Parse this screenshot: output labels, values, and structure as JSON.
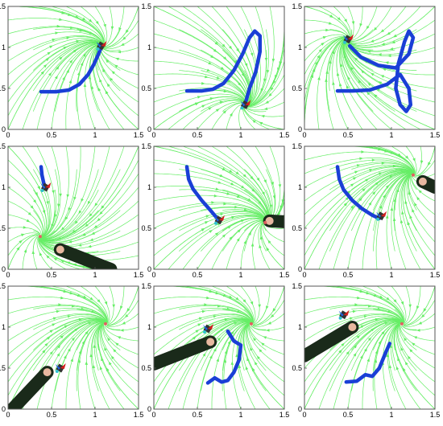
{
  "figure": {
    "background": "#ffffff",
    "stream_color": "#66ee66",
    "path_color": "#1a3fd6",
    "attractor_color": "#e06060",
    "arm_color": "#1a2a1a",
    "skin_color": "#e8b8a0"
  },
  "chart_data": [
    {
      "type": "scatter",
      "panel": "row1-col1",
      "xlim": [
        0,
        1.5
      ],
      "ylim": [
        0,
        1.5
      ],
      "x_ticks": [
        "0",
        "0.5",
        "1",
        "1.5"
      ],
      "y_ticks": [
        "0",
        "0.5",
        "1",
        "1.5"
      ],
      "grid": false,
      "attractors": [
        [
          1.08,
          1.02
        ]
      ],
      "path": [
        [
          0.38,
          0.46
        ],
        [
          0.55,
          0.46
        ],
        [
          0.7,
          0.48
        ],
        [
          0.82,
          0.55
        ],
        [
          0.92,
          0.67
        ],
        [
          0.99,
          0.8
        ],
        [
          1.04,
          0.92
        ],
        [
          1.07,
          1.0
        ]
      ],
      "robot": {
        "x": 1.07,
        "y": 1.02
      },
      "arm": null
    },
    {
      "type": "scatter",
      "panel": "row1-col2",
      "xlim": [
        0,
        1.5
      ],
      "ylim": [
        0,
        1.5
      ],
      "x_ticks": [
        "0",
        "0.5",
        "1",
        "1.5"
      ],
      "y_ticks": [
        "0",
        "0.5",
        "1",
        "1.5"
      ],
      "grid": false,
      "attractors": [
        [
          1.05,
          0.3
        ]
      ],
      "path": [
        [
          0.38,
          0.47
        ],
        [
          0.55,
          0.47
        ],
        [
          0.68,
          0.49
        ],
        [
          0.8,
          0.56
        ],
        [
          0.92,
          0.72
        ],
        [
          1.02,
          0.92
        ],
        [
          1.1,
          1.12
        ],
        [
          1.16,
          1.2
        ],
        [
          1.22,
          1.14
        ],
        [
          1.22,
          0.95
        ],
        [
          1.17,
          0.7
        ],
        [
          1.1,
          0.5
        ],
        [
          1.06,
          0.35
        ]
      ],
      "robot": {
        "x": 1.05,
        "y": 0.3
      },
      "arm": null
    },
    {
      "type": "scatter",
      "panel": "row1-col3",
      "xlim": [
        0,
        1.5
      ],
      "ylim": [
        0,
        1.5
      ],
      "x_ticks": [
        "0",
        "0.5",
        "1",
        "1.5"
      ],
      "y_ticks": [
        "0",
        "0.5",
        "1",
        "1.5"
      ],
      "grid": false,
      "attractors": [
        [
          0.5,
          1.1
        ]
      ],
      "path": [
        [
          0.38,
          0.47
        ],
        [
          0.55,
          0.47
        ],
        [
          0.75,
          0.48
        ],
        [
          0.95,
          0.55
        ],
        [
          1.1,
          0.67
        ],
        [
          1.2,
          0.5
        ],
        [
          1.22,
          0.3
        ],
        [
          1.17,
          0.22
        ],
        [
          1.1,
          0.3
        ],
        [
          1.05,
          0.5
        ],
        [
          1.08,
          0.8
        ],
        [
          1.15,
          1.07
        ],
        [
          1.2,
          1.2
        ],
        [
          1.25,
          1.12
        ],
        [
          1.2,
          0.92
        ],
        [
          1.05,
          0.75
        ],
        [
          0.85,
          0.78
        ],
        [
          0.65,
          0.88
        ],
        [
          0.52,
          1.02
        ]
      ],
      "robot": {
        "x": 0.5,
        "y": 1.1
      },
      "arm": null
    },
    {
      "type": "scatter",
      "panel": "row2-col1",
      "xlim": [
        0,
        1.5
      ],
      "ylim": [
        0,
        1.5
      ],
      "x_ticks": [
        "0",
        "0.5",
        "1",
        "1.5"
      ],
      "y_ticks": [
        "0",
        "0.5",
        "1",
        "1.5"
      ],
      "grid": false,
      "attractors": [
        [
          0.37,
          0.4
        ]
      ],
      "path": [
        [
          0.38,
          1.25
        ],
        [
          0.39,
          1.15
        ],
        [
          0.41,
          1.05
        ],
        [
          0.43,
          1.0
        ]
      ],
      "robot": {
        "x": 0.43,
        "y": 1.0
      },
      "arm": {
        "tip": [
          0.6,
          0.24
        ],
        "base": [
          1.18,
          0.0
        ]
      }
    },
    {
      "type": "scatter",
      "panel": "row2-col2",
      "xlim": [
        0,
        1.5
      ],
      "ylim": [
        0,
        1.5
      ],
      "x_ticks": [
        "0",
        "0.5",
        "1",
        "1.5"
      ],
      "y_ticks": [
        "0",
        "0.5",
        "1",
        "1.5"
      ],
      "grid": false,
      "attractors": [
        [
          1.28,
          0.57
        ]
      ],
      "path": [
        [
          0.38,
          1.25
        ],
        [
          0.4,
          1.1
        ],
        [
          0.45,
          0.98
        ],
        [
          0.55,
          0.84
        ],
        [
          0.65,
          0.72
        ],
        [
          0.73,
          0.62
        ]
      ],
      "robot": {
        "x": 0.75,
        "y": 0.6
      },
      "arm": {
        "tip": [
          1.33,
          0.59
        ],
        "base": [
          1.5,
          0.58
        ]
      }
    },
    {
      "type": "scatter",
      "panel": "row2-col3",
      "xlim": [
        0,
        1.5
      ],
      "ylim": [
        0,
        1.5
      ],
      "x_ticks": [
        "0",
        "0.5",
        "1",
        "1.5"
      ],
      "y_ticks": [
        "0",
        "0.5",
        "1",
        "1.5"
      ],
      "grid": false,
      "attractors": [
        [
          1.25,
          1.15
        ]
      ],
      "path": [
        [
          0.38,
          1.25
        ],
        [
          0.4,
          1.1
        ],
        [
          0.45,
          0.97
        ],
        [
          0.55,
          0.84
        ],
        [
          0.66,
          0.74
        ],
        [
          0.78,
          0.66
        ],
        [
          0.86,
          0.62
        ]
      ],
      "robot": {
        "x": 0.88,
        "y": 0.65
      },
      "arm": {
        "tip": [
          1.36,
          1.07
        ],
        "base": [
          1.5,
          1.0
        ]
      }
    },
    {
      "type": "scatter",
      "panel": "row3-col1",
      "xlim": [
        0,
        1.5
      ],
      "ylim": [
        0,
        1.5
      ],
      "x_ticks": [
        "0",
        "0.5",
        "1",
        "1.5"
      ],
      "y_ticks": [
        "0",
        "0.5",
        "1",
        "1.5"
      ],
      "grid": false,
      "attractors": [
        [
          1.12,
          1.04
        ]
      ],
      "path": [],
      "robot": {
        "x": 0.6,
        "y": 0.5
      },
      "arm": {
        "tip": [
          0.45,
          0.45
        ],
        "base": [
          0.05,
          0.0
        ]
      }
    },
    {
      "type": "scatter",
      "panel": "row3-col2",
      "xlim": [
        0,
        1.5
      ],
      "ylim": [
        0,
        1.5
      ],
      "x_ticks": [
        "0",
        "0.5",
        "1",
        "1.5"
      ],
      "y_ticks": [
        "0",
        "0.5",
        "1",
        "1.5"
      ],
      "grid": false,
      "attractors": [
        [
          1.12,
          1.04
        ]
      ],
      "path": [
        [
          0.62,
          0.32
        ],
        [
          0.7,
          0.38
        ],
        [
          0.78,
          0.33
        ],
        [
          0.85,
          0.35
        ],
        [
          0.92,
          0.45
        ],
        [
          0.98,
          0.6
        ],
        [
          1.0,
          0.78
        ],
        [
          0.92,
          0.83
        ],
        [
          0.85,
          0.95
        ]
      ],
      "robot": {
        "x": 0.62,
        "y": 0.98
      },
      "arm": {
        "tip": [
          0.65,
          0.82
        ],
        "base": [
          0.0,
          0.55
        ]
      }
    },
    {
      "type": "scatter",
      "panel": "row3-col3",
      "xlim": [
        0,
        1.5
      ],
      "ylim": [
        0,
        1.5
      ],
      "x_ticks": [
        "0",
        "0.5",
        "1",
        "1.5"
      ],
      "y_ticks": [
        "0",
        "0.5",
        "1",
        "1.5"
      ],
      "grid": false,
      "attractors": [
        [
          1.12,
          1.04
        ]
      ],
      "path": [
        [
          0.48,
          0.33
        ],
        [
          0.6,
          0.34
        ],
        [
          0.7,
          0.42
        ],
        [
          0.78,
          0.4
        ],
        [
          0.86,
          0.5
        ],
        [
          0.93,
          0.68
        ],
        [
          0.98,
          0.8
        ]
      ],
      "robot": {
        "x": 0.45,
        "y": 1.15
      },
      "arm": {
        "tip": [
          0.55,
          1.0
        ],
        "base": [
          0.0,
          0.65
        ]
      }
    }
  ]
}
